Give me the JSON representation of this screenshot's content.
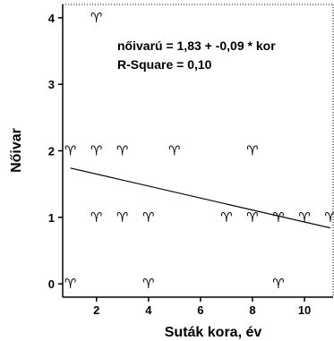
{
  "chart_data": {
    "type": "scatter",
    "xlabel": "Suták kora, év",
    "ylabel": "Nőivar",
    "xlim": [
      0.7,
      11.1
    ],
    "ylim": [
      -0.2,
      4.2
    ],
    "xticks": [
      2,
      4,
      6,
      8,
      10
    ],
    "yticks": [
      0,
      1,
      2,
      3,
      4
    ],
    "xtick_labels": [
      "2",
      "4",
      "6",
      "8",
      "10"
    ],
    "ytick_labels": [
      "0",
      "1",
      "2",
      "3",
      "4"
    ],
    "marker_symbol": "♈",
    "points": [
      {
        "x": 1,
        "y": 2
      },
      {
        "x": 2,
        "y": 2
      },
      {
        "x": 3,
        "y": 2
      },
      {
        "x": 5,
        "y": 2
      },
      {
        "x": 8,
        "y": 2
      },
      {
        "x": 2,
        "y": 4
      },
      {
        "x": 2,
        "y": 1
      },
      {
        "x": 3,
        "y": 1
      },
      {
        "x": 4,
        "y": 1
      },
      {
        "x": 7,
        "y": 1
      },
      {
        "x": 8,
        "y": 1
      },
      {
        "x": 9,
        "y": 1
      },
      {
        "x": 10,
        "y": 1
      },
      {
        "x": 11,
        "y": 1
      },
      {
        "x": 1,
        "y": 0
      },
      {
        "x": 4,
        "y": 0
      },
      {
        "x": 9,
        "y": 0
      }
    ],
    "regression": {
      "intercept": 1.83,
      "slope": -0.09,
      "x_range": [
        1,
        11
      ]
    },
    "annotations": [
      "nőivarú = 1,83 + -0,09 * kor",
      "R-Square = 0,10"
    ],
    "grid": false,
    "legend": "none"
  }
}
